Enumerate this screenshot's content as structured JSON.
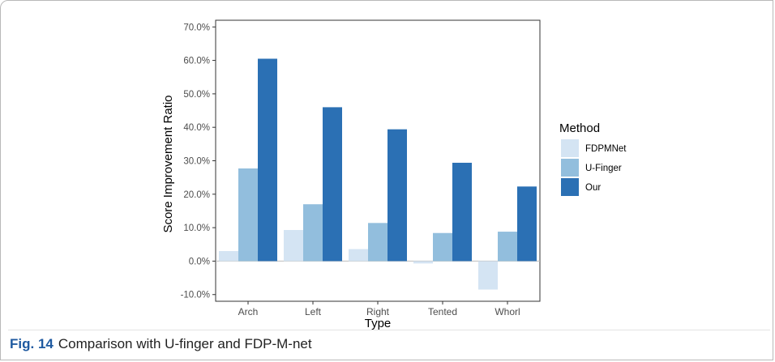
{
  "caption": {
    "label": "Fig. 14",
    "text": "Comparison with U-finger and FDP-M-net"
  },
  "chart_data": {
    "type": "bar",
    "xlabel": "Type",
    "ylabel": "Score Improvement Ratio",
    "categories": [
      "Arch",
      "Left",
      "Right",
      "Tented",
      "Whorl"
    ],
    "ylim": [
      -12,
      72
    ],
    "yticks": [
      -10,
      0,
      10,
      20,
      30,
      40,
      50,
      60,
      70
    ],
    "ytick_labels": [
      "-10.0%",
      "0.0%",
      "10.0%",
      "20.0%",
      "30.0%",
      "40.0%",
      "50.0%",
      "60.0%",
      "70.0%"
    ],
    "legend_title": "Method",
    "legend_position": "right",
    "grid": false,
    "series": [
      {
        "name": "FDPMNet",
        "color": "#d4e4f3",
        "values": [
          3.0,
          9.3,
          3.6,
          -0.7,
          -8.5
        ]
      },
      {
        "name": "U-Finger",
        "color": "#92bedd",
        "values": [
          27.7,
          17.0,
          11.4,
          8.4,
          8.8
        ]
      },
      {
        "name": "Our",
        "color": "#2b70b4",
        "values": [
          60.5,
          46.0,
          39.4,
          29.4,
          22.3
        ]
      }
    ]
  }
}
